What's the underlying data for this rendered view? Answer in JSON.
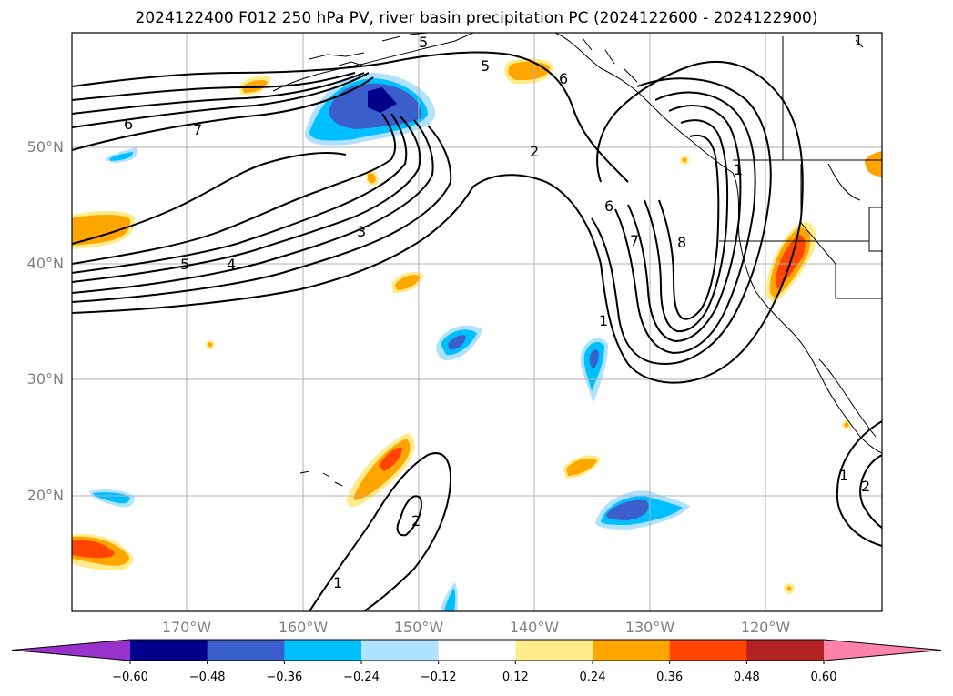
{
  "title": "2024122400 F012 250 hPa PV, river basin precipitation PC (2024122600 - 2024122900)",
  "map": {
    "lat_labels": [
      "50°N",
      "40°N",
      "30°N",
      "20°N"
    ],
    "lon_labels": [
      "170°W",
      "160°W",
      "150°W",
      "140°W",
      "130°W",
      "120°W"
    ],
    "contour_labels": [
      "5",
      "5",
      "6",
      "7",
      "6",
      "5",
      "4",
      "3",
      "2",
      "6",
      "7",
      "8",
      "1",
      "1",
      "1",
      "2",
      "1",
      "2",
      "1"
    ],
    "colors": {
      "frame": "#000000",
      "grid": "#b0b0b0",
      "contour": "#000000",
      "land": "#000000"
    }
  },
  "colorbar": {
    "ticks": [
      "−0.60",
      "−0.48",
      "−0.36",
      "−0.24",
      "−0.12",
      "0.12",
      "0.24",
      "0.36",
      "0.48",
      "0.60"
    ],
    "colors": [
      "#9932cc",
      "#00008b",
      "#3a5fcd",
      "#00bfff",
      "#b0e2ff",
      "#ffffff",
      "#ffec8b",
      "#ffa500",
      "#ff4500",
      "#b22222",
      "#ff82ab"
    ]
  }
}
